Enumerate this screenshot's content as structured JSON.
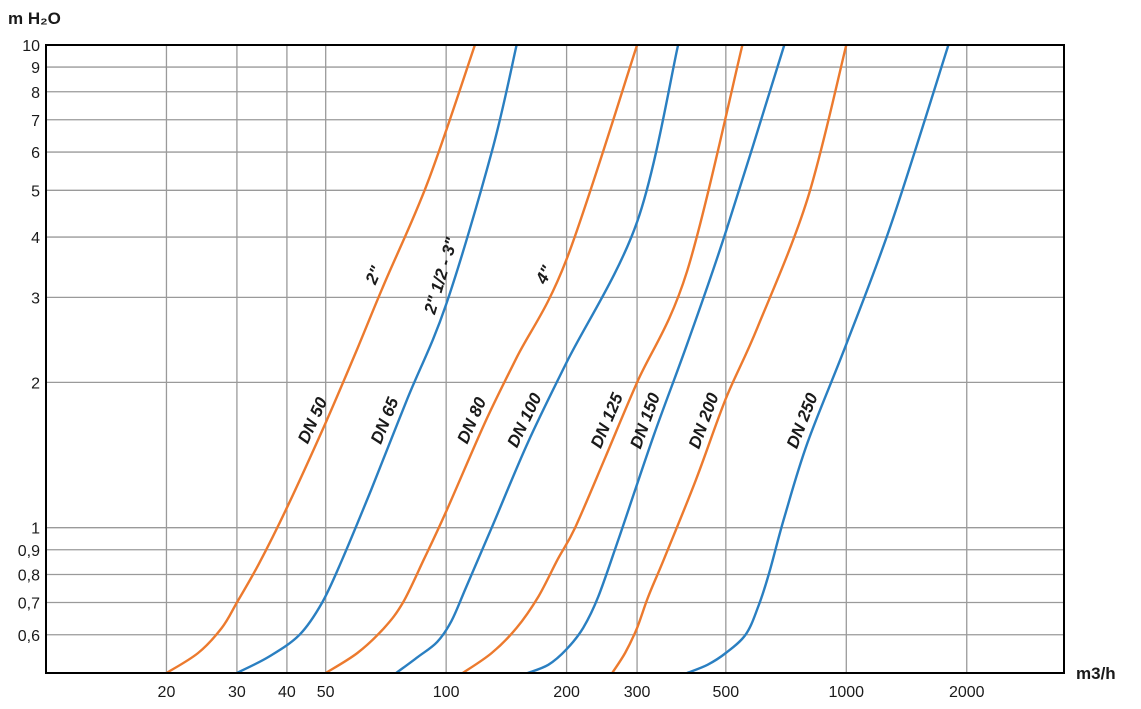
{
  "chart_data": {
    "type": "line",
    "title": "",
    "xlabel": "m3/h",
    "ylabel": "m H₂O",
    "x_scale": "log",
    "y_scale": "log",
    "xlim": [
      10,
      3500
    ],
    "ylim": [
      0.5,
      10
    ],
    "grid": true,
    "x_ticks": [
      {
        "value": 20,
        "label": "20"
      },
      {
        "value": 30,
        "label": "30"
      },
      {
        "value": 40,
        "label": "40"
      },
      {
        "value": 50,
        "label": "50"
      },
      {
        "value": 100,
        "label": "100"
      },
      {
        "value": 200,
        "label": "200"
      },
      {
        "value": 300,
        "label": "300"
      },
      {
        "value": 500,
        "label": "500"
      },
      {
        "value": 1000,
        "label": "1000"
      },
      {
        "value": 2000,
        "label": "2000"
      }
    ],
    "y_ticks": [
      {
        "value": 0.6,
        "label": "0,6"
      },
      {
        "value": 0.7,
        "label": "0,7"
      },
      {
        "value": 0.8,
        "label": "0,8"
      },
      {
        "value": 0.9,
        "label": "0,9"
      },
      {
        "value": 1,
        "label": "1"
      },
      {
        "value": 2,
        "label": "2"
      },
      {
        "value": 3,
        "label": "3"
      },
      {
        "value": 4,
        "label": "4"
      },
      {
        "value": 5,
        "label": "5"
      },
      {
        "value": 6,
        "label": "6"
      },
      {
        "value": 7,
        "label": "7"
      },
      {
        "value": 8,
        "label": "8"
      },
      {
        "value": 9,
        "label": "9"
      },
      {
        "value": 10,
        "label": "10"
      }
    ],
    "series": [
      {
        "name": "DN 50",
        "alt_label": "2\"",
        "color": "#ec7a2e",
        "points": [
          [
            20,
            0.5
          ],
          [
            24,
            0.55
          ],
          [
            27.5,
            0.62
          ],
          [
            30,
            0.7
          ],
          [
            34,
            0.84
          ],
          [
            40,
            1.1
          ],
          [
            50,
            1.65
          ],
          [
            60,
            2.35
          ],
          [
            70,
            3.2
          ],
          [
            90,
            5.2
          ],
          [
            118,
            10
          ]
        ]
      },
      {
        "name": "DN 65",
        "alt_label": "2\" 1/2 - 3\"",
        "color": "#2a7fc1",
        "points": [
          [
            30,
            0.5
          ],
          [
            36,
            0.54
          ],
          [
            43,
            0.6
          ],
          [
            49,
            0.7
          ],
          [
            55,
            0.86
          ],
          [
            65,
            1.2
          ],
          [
            80,
            1.85
          ],
          [
            100,
            2.9
          ],
          [
            130,
            6
          ],
          [
            150,
            10
          ]
        ]
      },
      {
        "name": "DN 80",
        "alt_label": "4\"",
        "color": "#ec7a2e",
        "points": [
          [
            50,
            0.5
          ],
          [
            60,
            0.55
          ],
          [
            70,
            0.62
          ],
          [
            78,
            0.7
          ],
          [
            88,
            0.86
          ],
          [
            100,
            1.08
          ],
          [
            125,
            1.65
          ],
          [
            150,
            2.25
          ],
          [
            200,
            3.6
          ],
          [
            300,
            10
          ]
        ]
      },
      {
        "name": "DN 100",
        "color": "#2a7fc1",
        "points": [
          [
            75,
            0.5
          ],
          [
            85,
            0.54
          ],
          [
            95,
            0.58
          ],
          [
            103,
            0.64
          ],
          [
            112,
            0.75
          ],
          [
            130,
            1
          ],
          [
            160,
            1.5
          ],
          [
            200,
            2.2
          ],
          [
            300,
            4.3
          ],
          [
            380,
            10
          ]
        ]
      },
      {
        "name": "DN 125",
        "color": "#ec7a2e",
        "points": [
          [
            110,
            0.5
          ],
          [
            130,
            0.55
          ],
          [
            150,
            0.62
          ],
          [
            170,
            0.72
          ],
          [
            190,
            0.86
          ],
          [
            210,
            1
          ],
          [
            250,
            1.4
          ],
          [
            300,
            2
          ],
          [
            400,
            3.4
          ],
          [
            550,
            10
          ]
        ]
      },
      {
        "name": "DN 150",
        "color": "#2a7fc1",
        "points": [
          [
            160,
            0.5
          ],
          [
            180,
            0.52
          ],
          [
            200,
            0.56
          ],
          [
            220,
            0.62
          ],
          [
            240,
            0.72
          ],
          [
            270,
            0.95
          ],
          [
            330,
            1.55
          ],
          [
            400,
            2.4
          ],
          [
            500,
            4.1
          ],
          [
            700,
            10
          ]
        ]
      },
      {
        "name": "DN 200",
        "color": "#ec7a2e",
        "points": [
          [
            260,
            0.5
          ],
          [
            280,
            0.55
          ],
          [
            300,
            0.62
          ],
          [
            320,
            0.72
          ],
          [
            350,
            0.86
          ],
          [
            420,
            1.25
          ],
          [
            500,
            1.85
          ],
          [
            600,
            2.6
          ],
          [
            800,
            4.8
          ],
          [
            1000,
            10
          ]
        ]
      },
      {
        "name": "DN 250",
        "color": "#2a7fc1",
        "points": [
          [
            400,
            0.5
          ],
          [
            450,
            0.52
          ],
          [
            500,
            0.55
          ],
          [
            560,
            0.6
          ],
          [
            600,
            0.68
          ],
          [
            640,
            0.8
          ],
          [
            700,
            1.05
          ],
          [
            800,
            1.5
          ],
          [
            1000,
            2.4
          ],
          [
            1300,
            4.3
          ],
          [
            1800,
            10
          ]
        ]
      }
    ]
  }
}
